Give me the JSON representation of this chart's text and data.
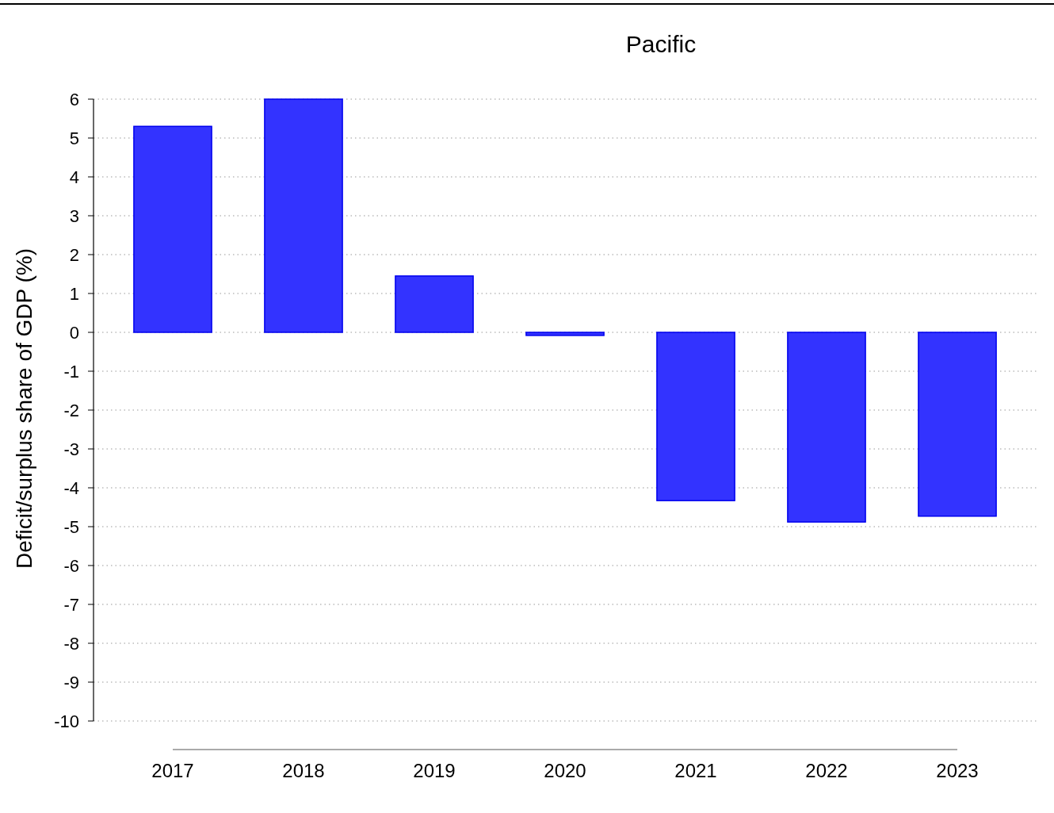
{
  "chart_data": {
    "type": "bar",
    "title": "Pacific",
    "ylabel": "Deficit/surplus share of GDP (%)",
    "categories": [
      "2017",
      "2018",
      "2019",
      "2020",
      "2021",
      "2022",
      "2023"
    ],
    "values": [
      5.3,
      6.0,
      1.45,
      -0.08,
      -4.33,
      -4.88,
      -4.73
    ],
    "color": "#3333ff",
    "ylim": [
      -10,
      6
    ],
    "yticks": [
      -10,
      -9,
      -8,
      -7,
      -6,
      -5,
      -4,
      -3,
      -2,
      -1,
      0,
      1,
      2,
      3,
      4,
      5,
      6
    ],
    "grid": "y"
  }
}
